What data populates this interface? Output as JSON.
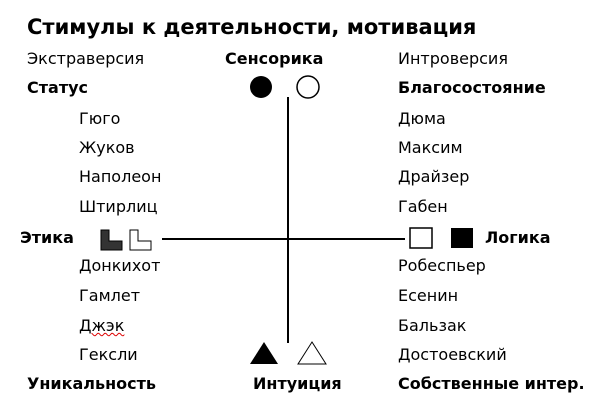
{
  "title": "Стимулы к деятельности, мотивация",
  "top": {
    "left": "Экстраверсия",
    "center": "Сенсорика",
    "right": "Интроверсия"
  },
  "quadrants": {
    "top_left": {
      "label": "Статус",
      "items": [
        "Гюго",
        "Жуков",
        "Наполеон",
        "Штирлиц"
      ]
    },
    "top_right": {
      "label": "Благосостояние",
      "items": [
        "Дюма",
        "Максим",
        "Драйзер",
        "Габен"
      ]
    },
    "bottom_left": {
      "label": "Уникальность",
      "items": [
        "Донкихот",
        "Гамлет",
        "Джэк",
        "Гексли"
      ]
    },
    "bottom_right": {
      "label": "Собственные интер.",
      "items": [
        "Робеспьер",
        "Есенин",
        "Бальзак",
        "Достоевский"
      ]
    }
  },
  "axes": {
    "left": "Этика",
    "right": "Логика",
    "bottom": "Интуиция"
  },
  "icons": [
    "filled-circle",
    "empty-circle",
    "filled-l-shape",
    "empty-l-shape",
    "empty-square",
    "filled-square",
    "filled-triangle",
    "empty-triangle"
  ]
}
